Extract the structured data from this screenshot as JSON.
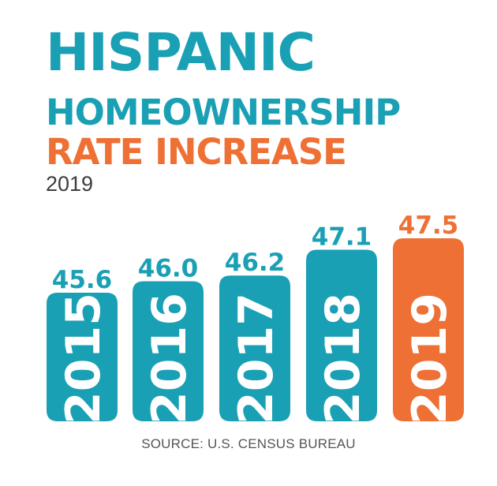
{
  "colors": {
    "primary": "#1aa0b4",
    "accent": "#ee7035",
    "text_gray": "#3d3d3d",
    "source_gray": "#555555"
  },
  "title": {
    "line1": "HISPANIC",
    "line2": "HOMEOWNERSHIP",
    "line3": "RATE INCREASE"
  },
  "subtitle": "2019",
  "source": "SOURCE: U.S. CENSUS BUREAU",
  "chart_data": {
    "type": "bar",
    "categories": [
      "2015",
      "2016",
      "2017",
      "2018",
      "2019"
    ],
    "values": [
      45.6,
      46.0,
      46.2,
      47.1,
      47.5
    ],
    "value_labels": [
      "45.6",
      "46.0",
      "46.2",
      "47.1",
      "47.5"
    ],
    "highlight_category": "2019",
    "grid": false,
    "legend": "none"
  }
}
